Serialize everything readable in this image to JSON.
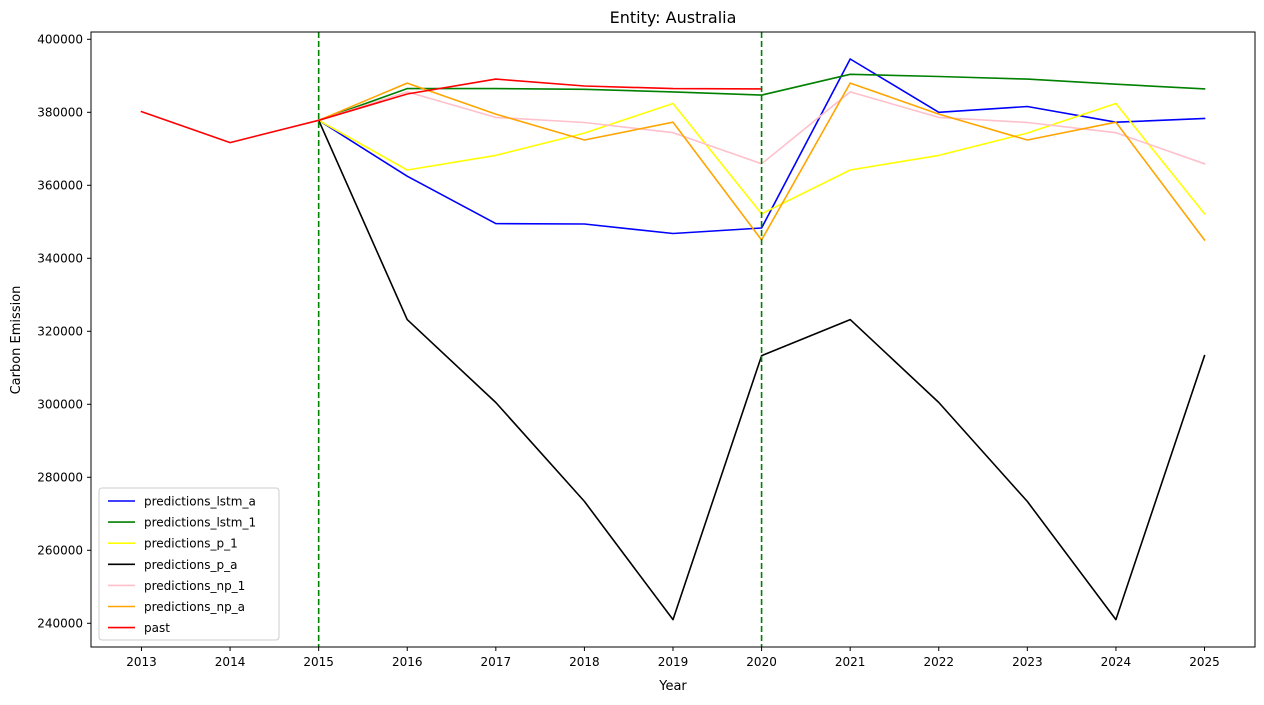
{
  "chart_data": {
    "type": "line",
    "title": "Entity: Australia",
    "xlabel": "Year",
    "ylabel": "Carbon Emission",
    "xlim": [
      2012.43,
      2025.57
    ],
    "ylim": [
      233500,
      402000
    ],
    "xticks": [
      2013,
      2014,
      2015,
      2016,
      2017,
      2018,
      2019,
      2020,
      2021,
      2022,
      2023,
      2024,
      2025
    ],
    "yticks": [
      240000,
      260000,
      280000,
      300000,
      320000,
      340000,
      360000,
      380000,
      400000
    ],
    "grid": false,
    "legend_position": "lower-left",
    "vlines": [
      {
        "x": 2015,
        "color": "#008000",
        "style": "dashed"
      },
      {
        "x": 2020,
        "color": "#008000",
        "style": "dashed"
      }
    ],
    "series": [
      {
        "name": "predictions_lstm_a",
        "color": "#0000ff",
        "x": [
          2015,
          2016,
          2017,
          2018,
          2019,
          2020,
          2021,
          2022,
          2023,
          2024,
          2025
        ],
        "y": [
          377800,
          362500,
          349500,
          349400,
          346800,
          348300,
          394600,
          380000,
          381600,
          377300,
          378300
        ]
      },
      {
        "name": "predictions_lstm_1",
        "color": "#008000",
        "x": [
          2015,
          2016,
          2017,
          2018,
          2019,
          2020,
          2021,
          2022,
          2023,
          2024,
          2025
        ],
        "y": [
          377800,
          386500,
          386500,
          386300,
          385600,
          384700,
          390400,
          389800,
          389100,
          387700,
          386400
        ]
      },
      {
        "name": "predictions_p_1",
        "color": "#ffff00",
        "x": [
          2015,
          2016,
          2017,
          2018,
          2019,
          2020,
          2021,
          2022,
          2023,
          2024,
          2025
        ],
        "y": [
          377800,
          364200,
          368200,
          374300,
          382400,
          352200,
          364200,
          368200,
          374300,
          382400,
          352200
        ]
      },
      {
        "name": "predictions_p_a",
        "color": "#000000",
        "x": [
          2015,
          2016,
          2017,
          2018,
          2019,
          2020,
          2021,
          2022,
          2023,
          2024,
          2025
        ],
        "y": [
          377800,
          323200,
          300500,
          273400,
          241000,
          313300,
          323200,
          300500,
          273400,
          241000,
          313300
        ]
      },
      {
        "name": "predictions_np_1",
        "color": "#ffc0cb",
        "x": [
          2015,
          2016,
          2017,
          2018,
          2019,
          2020,
          2021,
          2022,
          2023,
          2024,
          2025
        ],
        "y": [
          377800,
          385600,
          378600,
          377200,
          374400,
          365900,
          385600,
          378600,
          377200,
          374400,
          365900
        ]
      },
      {
        "name": "predictions_np_a",
        "color": "#ffa500",
        "x": [
          2015,
          2016,
          2017,
          2018,
          2019,
          2020,
          2021,
          2022,
          2023,
          2024,
          2025
        ],
        "y": [
          377800,
          388000,
          379500,
          372400,
          377300,
          345000,
          388000,
          379500,
          372400,
          377300,
          345000
        ]
      },
      {
        "name": "past",
        "color": "#ff0000",
        "x": [
          2013,
          2014,
          2015,
          2016,
          2017,
          2018,
          2019,
          2020
        ],
        "y": [
          380200,
          371700,
          377800,
          385000,
          389100,
          387200,
          386500,
          386400
        ]
      }
    ]
  }
}
